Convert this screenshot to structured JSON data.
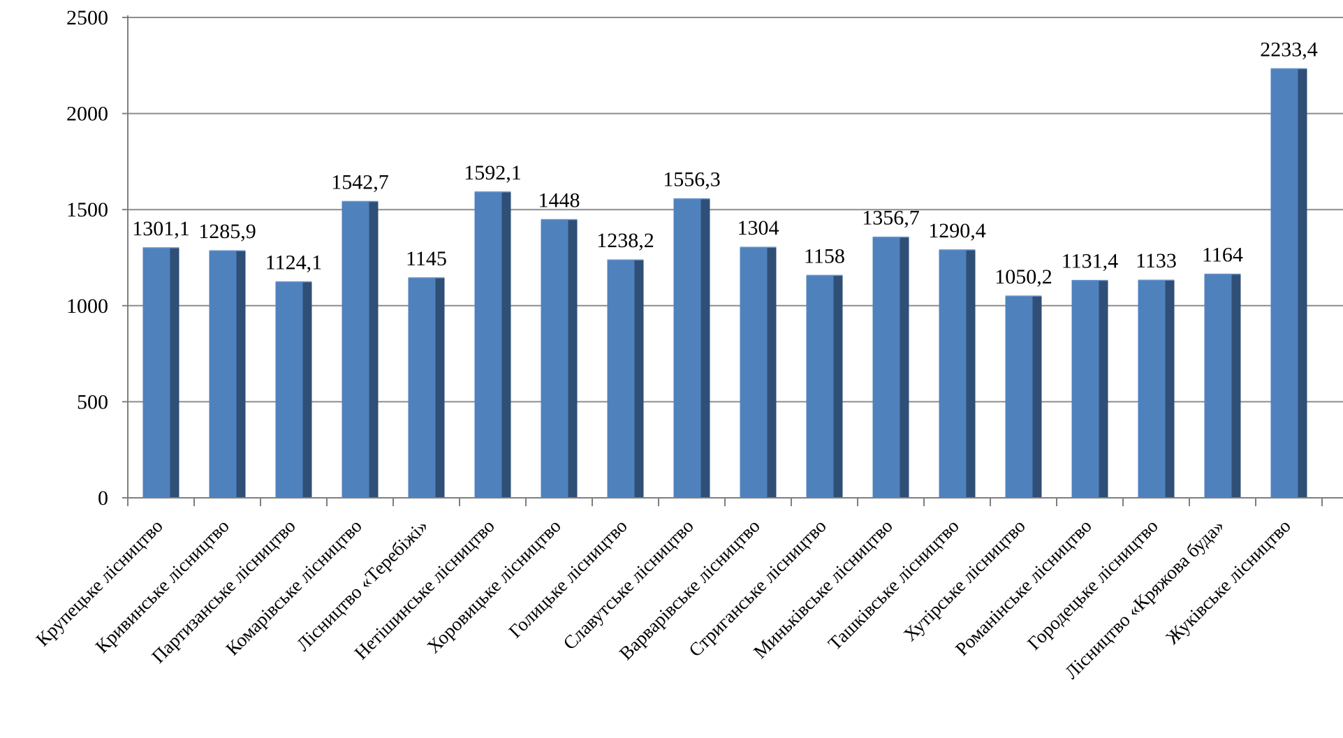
{
  "chart_data": {
    "type": "bar",
    "title": "",
    "xlabel": "",
    "ylabel": "",
    "ylim": [
      0,
      2500
    ],
    "yticks": [
      0,
      500,
      1000,
      1500,
      2000,
      2500
    ],
    "grid": true,
    "legend": "none",
    "colors": {
      "bar_front": "#4f81bd",
      "bar_side": "#2f4f76",
      "grid": "#8c8c8c"
    },
    "categories": [
      "Крупецьке лісництво",
      "Кривинське лісництво",
      "Партизанське лісництво",
      "Комарівське лісництво",
      "Лісництво «Теребіжі»",
      "Нетішинське лісництво",
      "Хоровицьке лісництво",
      "Голицьке лісництво",
      "Славутське лісництво",
      "Варварівське лісництво",
      "Стриганське лісництво",
      "Миньківське лісництво",
      "Ташківське лісництво",
      "Хутірське лісництво",
      "Романінське лісництво",
      "Городецьке лісництво",
      "Лісництво «Кряжова буда»",
      "Жуківське лісництво"
    ],
    "values": [
      1301.1,
      1285.9,
      1124.1,
      1542.7,
      1145,
      1592.1,
      1448,
      1238.2,
      1556.3,
      1304,
      1158,
      1356.7,
      1290.4,
      1050.2,
      1131.4,
      1133,
      1164,
      2233.4
    ],
    "data_labels": [
      "1301,1",
      "1285,9",
      "1124,1",
      "1542,7",
      "1145",
      "1592,1",
      "1448",
      "1238,2",
      "1556,3",
      "1304",
      "1158",
      "1356,7",
      "1290,4",
      "1050,2",
      "1131,4",
      "1133",
      "1164",
      "2233,4"
    ]
  }
}
